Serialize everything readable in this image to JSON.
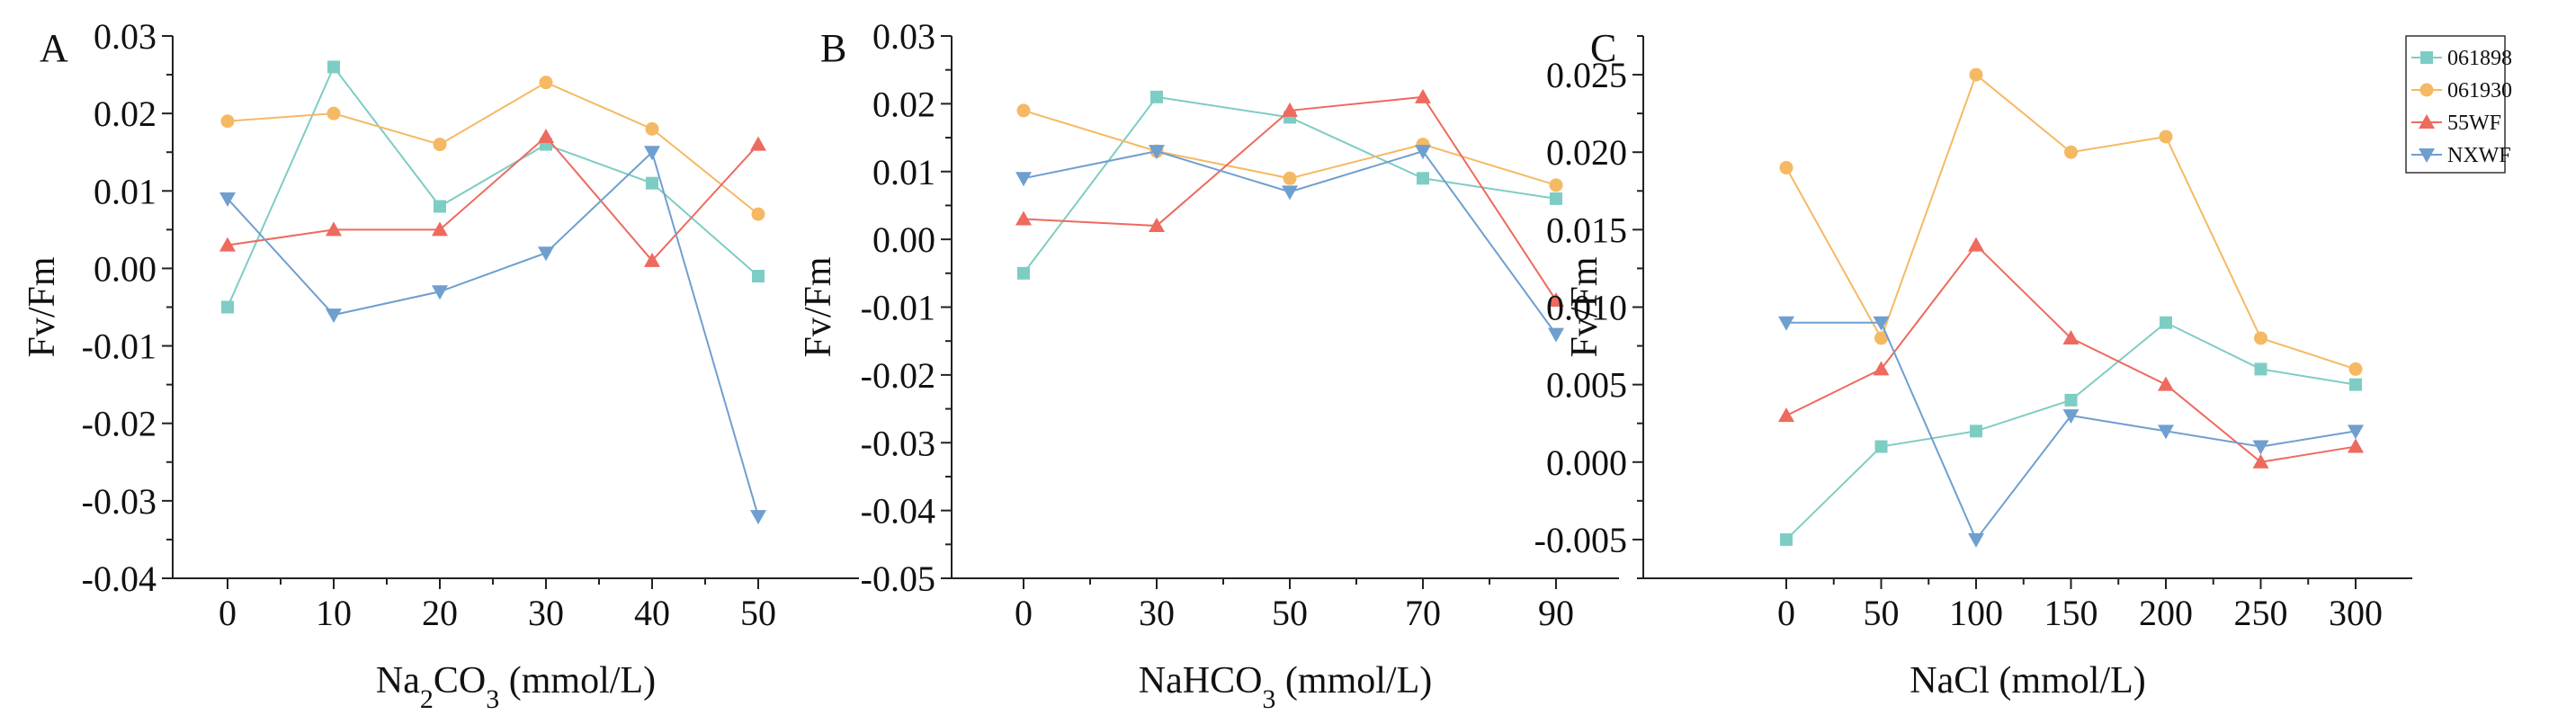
{
  "legend": {
    "series": [
      {
        "name": "061898",
        "color": "#7ecdc4",
        "marker": "square"
      },
      {
        "name": "061930",
        "color": "#f5b964",
        "marker": "circle"
      },
      {
        "name": "55WF",
        "color": "#ee6a5e",
        "marker": "triangle-up"
      },
      {
        "name": "NXWF",
        "color": "#6f9fcf",
        "marker": "triangle-down"
      }
    ]
  },
  "chart_data": [
    {
      "type": "line",
      "panel": "A",
      "xlabel": "Na2CO3 (mmol/L)",
      "xlabel_parts": {
        "pre": "Na",
        "sub1": "2",
        "mid": "CO",
        "sub2": "3",
        "post": " (mmol/L)"
      },
      "ylabel": "Fv/Fm",
      "x": [
        0,
        10,
        20,
        30,
        40,
        50
      ],
      "xticks": [
        "0",
        "10",
        "20",
        "30",
        "40",
        "50"
      ],
      "ylim": [
        -0.04,
        0.03
      ],
      "yticks": [
        "-0.04",
        "-0.03",
        "-0.02",
        "-0.01",
        "0.00",
        "0.01",
        "0.02",
        "0.03"
      ],
      "series": [
        {
          "name": "061898",
          "values": [
            -0.005,
            0.026,
            0.008,
            0.016,
            0.011,
            -0.001
          ]
        },
        {
          "name": "061930",
          "values": [
            0.019,
            0.02,
            0.016,
            0.024,
            0.018,
            0.007
          ]
        },
        {
          "name": "55WF",
          "values": [
            0.003,
            0.005,
            0.005,
            0.017,
            0.001,
            0.016
          ]
        },
        {
          "name": "NXWF",
          "values": [
            0.009,
            -0.006,
            -0.003,
            0.002,
            0.015,
            -0.032
          ]
        }
      ]
    },
    {
      "type": "line",
      "panel": "B",
      "xlabel": "NaHCO3 (mmol/L)",
      "xlabel_parts": {
        "pre": "NaHCO",
        "sub1": "3",
        "mid": "",
        "sub2": "",
        "post": " (mmol/L)"
      },
      "ylabel": "Fv/Fm",
      "x": [
        0,
        30,
        50,
        70,
        90
      ],
      "xticks": [
        "0",
        "30",
        "50",
        "70",
        "90"
      ],
      "ylim": [
        -0.05,
        0.03
      ],
      "yticks": [
        "-0.05",
        "-0.04",
        "-0.03",
        "-0.02",
        "-0.01",
        "0.00",
        "0.01",
        "0.02",
        "0.03"
      ],
      "series": [
        {
          "name": "061898",
          "values": [
            -0.005,
            0.021,
            0.018,
            0.009,
            0.006
          ]
        },
        {
          "name": "061930",
          "values": [
            0.019,
            0.013,
            0.009,
            0.014,
            0.008
          ]
        },
        {
          "name": "55WF",
          "values": [
            0.003,
            0.002,
            0.019,
            0.021,
            -0.009
          ]
        },
        {
          "name": "NXWF",
          "values": [
            0.009,
            0.013,
            0.007,
            0.013,
            -0.014
          ]
        }
      ]
    },
    {
      "type": "line",
      "panel": "C",
      "xlabel": "NaCl (mmol/L)",
      "xlabel_parts": {
        "pre": "NaCl (mmol/L)",
        "sub1": "",
        "mid": "",
        "sub2": "",
        "post": ""
      },
      "ylabel": "Fv/Fm",
      "x": [
        0,
        50,
        100,
        150,
        200,
        250,
        300
      ],
      "xticks": [
        "0",
        "50",
        "100",
        "150",
        "200",
        "250",
        "300"
      ],
      "ylim": [
        -0.0075,
        0.0275
      ],
      "yticks": [
        "-0.005",
        "0.000",
        "0.005",
        "0.010",
        "0.015",
        "0.020",
        "0.025"
      ],
      "series": [
        {
          "name": "061898",
          "values": [
            -0.005,
            0.001,
            0.002,
            0.004,
            0.009,
            0.006,
            0.005
          ]
        },
        {
          "name": "061930",
          "values": [
            0.019,
            0.008,
            0.025,
            0.02,
            0.021,
            0.008,
            0.006
          ]
        },
        {
          "name": "55WF",
          "values": [
            0.003,
            0.006,
            0.014,
            0.008,
            0.005,
            0.0,
            0.001
          ]
        },
        {
          "name": "NXWF",
          "values": [
            0.009,
            0.009,
            -0.005,
            0.003,
            0.002,
            0.001,
            0.002
          ]
        }
      ]
    }
  ]
}
